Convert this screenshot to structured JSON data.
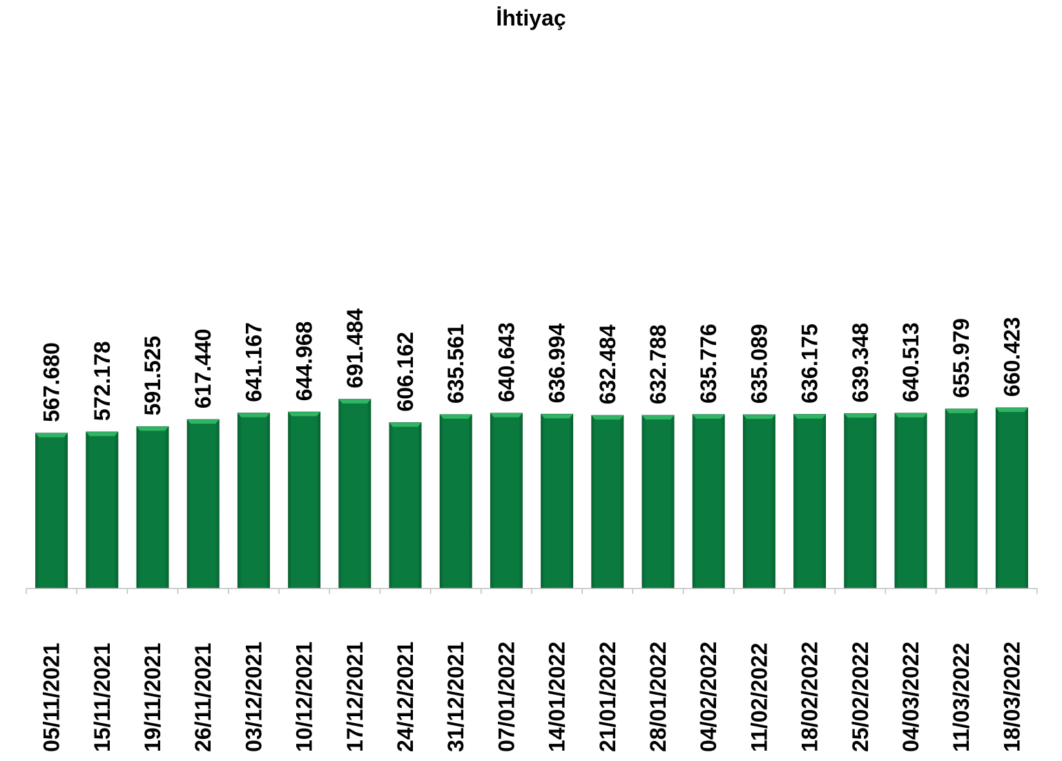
{
  "chart_data": {
    "type": "bar",
    "title": "İhtiyaç",
    "xlabel": "",
    "ylabel": "",
    "categories": [
      "05/11/2021",
      "15/11/2021",
      "19/11/2021",
      "26/11/2021",
      "03/12/2021",
      "10/12/2021",
      "17/12/2021",
      "24/12/2021",
      "31/12/2021",
      "07/01/2022",
      "14/01/2022",
      "21/01/2022",
      "28/01/2022",
      "04/02/2022",
      "11/02/2022",
      "18/02/2022",
      "25/02/2022",
      "04/03/2022",
      "11/03/2022",
      "18/03/2022"
    ],
    "values": [
      567680,
      572178,
      591525,
      617440,
      641167,
      644968,
      691484,
      606162,
      635561,
      640643,
      636994,
      632484,
      632788,
      635776,
      635089,
      636175,
      639348,
      640513,
      655979,
      660423
    ],
    "data_labels": [
      "567.680",
      "572.178",
      "591.525",
      "617.440",
      "641.167",
      "644.968",
      "691.484",
      "606.162",
      "635.561",
      "640.643",
      "636.994",
      "632.484",
      "632.788",
      "635.776",
      "635.089",
      "636.175",
      "639.348",
      "640.513",
      "655.979",
      "660.423"
    ],
    "ylim": [
      0,
      800000
    ],
    "grid": false,
    "legend": "none",
    "bar_color": "#0a7a3e",
    "bar_top_color": "#2fb564"
  }
}
